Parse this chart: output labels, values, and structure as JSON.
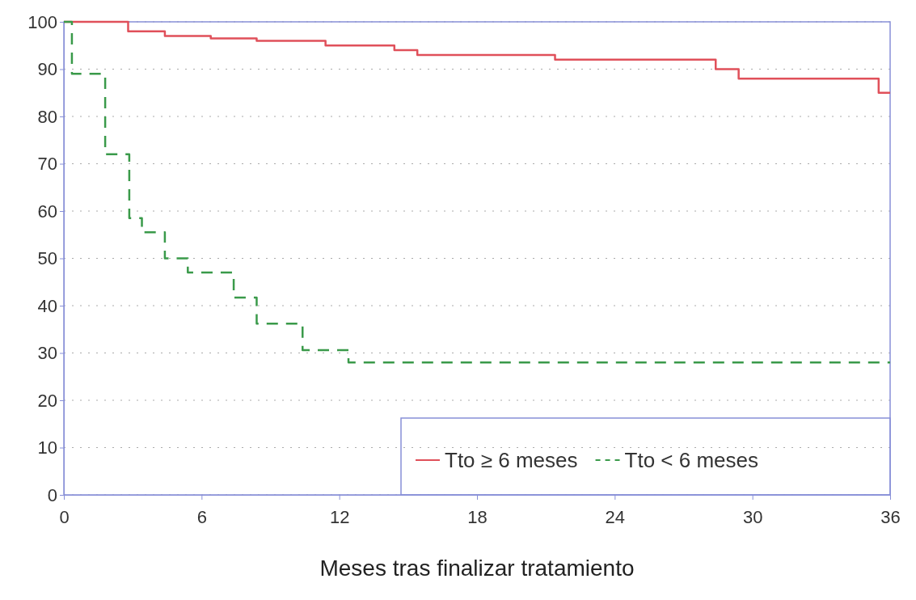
{
  "chart_data": {
    "type": "step",
    "xlabel": "Meses tras finalizar tratamiento",
    "xlim": [
      0,
      36
    ],
    "xticks": [
      0,
      6,
      12,
      18,
      24,
      30,
      36
    ],
    "ylim": [
      0,
      100
    ],
    "yticks": [
      0,
      10,
      20,
      30,
      40,
      50,
      60,
      70,
      80,
      90,
      100
    ],
    "grid": "y",
    "legend": "bottom right",
    "series": [
      {
        "name": "Tto ≥ 6 meses",
        "color": "#e0505a",
        "line_style": "solid",
        "x": [
          0,
          2.8,
          4.4,
          6.4,
          8.4,
          11.4,
          14.4,
          15.4,
          21.4,
          28.4,
          29.4,
          35.5,
          36
        ],
        "values": [
          100,
          98,
          97,
          96.5,
          96,
          95,
          94,
          93,
          92,
          90,
          88,
          85,
          85
        ]
      },
      {
        "name": "Tto < 6 meses",
        "color": "#3a9a4a",
        "line_style": "dashed",
        "x": [
          0,
          0.35,
          1.8,
          2.85,
          3.4,
          4.4,
          5.4,
          7.4,
          8.4,
          10.4,
          12.4,
          36
        ],
        "values": [
          100,
          89,
          72,
          58.5,
          55.5,
          50,
          47,
          41.7,
          36.2,
          30.6,
          28,
          28
        ]
      }
    ]
  }
}
